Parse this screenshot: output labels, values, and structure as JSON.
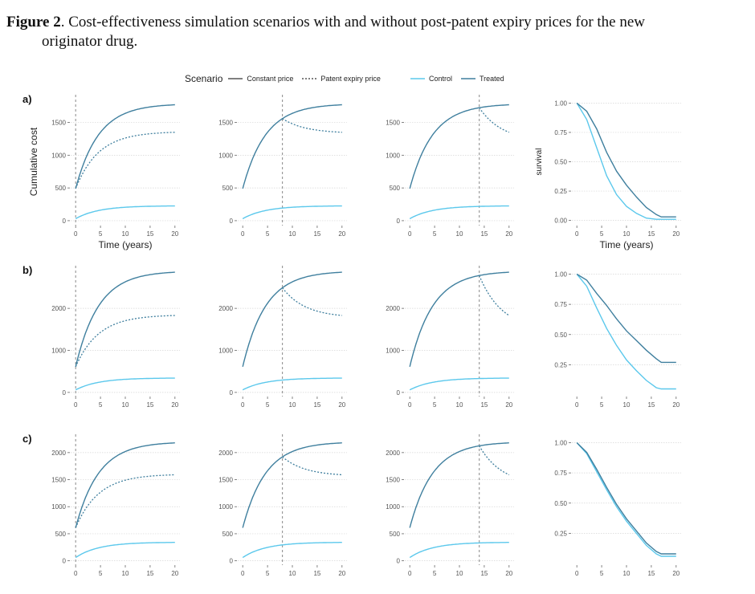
{
  "caption": {
    "label": "Figure 2",
    "text_line1": ". Cost-effectiveness simulation scenarios with and without post-patent expiry prices for the new",
    "text_line2": "originator drug."
  },
  "legend": {
    "scenario_title": "Scenario",
    "scenario_items": [
      "Constant price",
      "Patent expiry price"
    ],
    "arm_items": [
      "Control",
      "Treated"
    ]
  },
  "colors": {
    "control": "#5bc8ec",
    "treated": "#3f7f9e",
    "grid": "#d6d6d6",
    "vline": "#888888"
  },
  "chart_data": {
    "type": "line",
    "x_axis_label": "Time (years)",
    "cost_axis_label": "Cumulative cost",
    "survival_axis_label": "survival",
    "x_ticks": [
      0,
      5,
      10,
      15,
      20
    ],
    "rows": [
      {
        "label": "a)",
        "cost_ylim": [
          -50,
          1850
        ],
        "cost_yticks": [
          0,
          500,
          1000,
          1500
        ],
        "treated_constant_max": 1770,
        "treated_start": 490,
        "treated_expiry_final": 1350,
        "control_final": 225,
        "control_start": 30,
        "expiry_years": [
          0,
          8,
          14
        ],
        "survival_ylim": [
          -0.03,
          1.03
        ],
        "survival_yticks": [
          "0.00",
          "0.25",
          "0.50",
          "0.75",
          "1.00"
        ],
        "treated_survival": [
          [
            0,
            1.0
          ],
          [
            2,
            0.93
          ],
          [
            4,
            0.78
          ],
          [
            6,
            0.58
          ],
          [
            8,
            0.42
          ],
          [
            10,
            0.3
          ],
          [
            12,
            0.2
          ],
          [
            14,
            0.11
          ],
          [
            16,
            0.05
          ],
          [
            17,
            0.03
          ],
          [
            20,
            0.03
          ]
        ],
        "control_survival": [
          [
            0,
            1.0
          ],
          [
            2,
            0.86
          ],
          [
            4,
            0.62
          ],
          [
            6,
            0.38
          ],
          [
            8,
            0.22
          ],
          [
            10,
            0.12
          ],
          [
            12,
            0.06
          ],
          [
            14,
            0.02
          ],
          [
            16,
            0.01
          ],
          [
            20,
            0.01
          ]
        ],
        "show_cost_ylabel": true,
        "show_x_label": true
      },
      {
        "label": "b)",
        "cost_ylim": [
          -60,
          2900
        ],
        "cost_yticks": [
          0,
          1000,
          2000
        ],
        "treated_constant_max": 2860,
        "treated_start": 610,
        "treated_expiry_final": 1830,
        "control_final": 340,
        "control_start": 60,
        "expiry_years": [
          0,
          8,
          14
        ],
        "survival_ylim": [
          0.0,
          1.03
        ],
        "survival_yticks": [
          "0.25",
          "0.50",
          "0.75",
          "1.00"
        ],
        "treated_survival": [
          [
            0,
            1.0
          ],
          [
            2,
            0.95
          ],
          [
            4,
            0.84
          ],
          [
            6,
            0.74
          ],
          [
            8,
            0.63
          ],
          [
            10,
            0.53
          ],
          [
            12,
            0.45
          ],
          [
            14,
            0.37
          ],
          [
            16,
            0.3
          ],
          [
            17,
            0.27
          ],
          [
            20,
            0.27
          ]
        ],
        "control_survival": [
          [
            0,
            1.0
          ],
          [
            2,
            0.9
          ],
          [
            4,
            0.72
          ],
          [
            6,
            0.55
          ],
          [
            8,
            0.41
          ],
          [
            10,
            0.29
          ],
          [
            12,
            0.2
          ],
          [
            14,
            0.12
          ],
          [
            16,
            0.06
          ],
          [
            17,
            0.05
          ],
          [
            20,
            0.05
          ]
        ],
        "show_cost_ylabel": false,
        "show_x_label": false
      },
      {
        "label": "c)",
        "cost_ylim": [
          -50,
          2250
        ],
        "cost_yticks": [
          0,
          500,
          1000,
          1500,
          2000
        ],
        "treated_constant_max": 2180,
        "treated_start": 610,
        "treated_expiry_final": 1590,
        "control_final": 340,
        "control_start": 60,
        "expiry_years": [
          0,
          8,
          14
        ],
        "survival_ylim": [
          0.0,
          1.03
        ],
        "survival_yticks": [
          "0.25",
          "0.50",
          "0.75",
          "1.00"
        ],
        "treated_survival": [
          [
            0,
            1.0
          ],
          [
            2,
            0.92
          ],
          [
            4,
            0.78
          ],
          [
            6,
            0.63
          ],
          [
            8,
            0.49
          ],
          [
            10,
            0.37
          ],
          [
            12,
            0.27
          ],
          [
            14,
            0.17
          ],
          [
            16,
            0.1
          ],
          [
            17,
            0.08
          ],
          [
            20,
            0.08
          ]
        ],
        "control_survival": [
          [
            0,
            1.0
          ],
          [
            2,
            0.91
          ],
          [
            4,
            0.76
          ],
          [
            6,
            0.61
          ],
          [
            8,
            0.47
          ],
          [
            10,
            0.35
          ],
          [
            12,
            0.25
          ],
          [
            14,
            0.15
          ],
          [
            16,
            0.08
          ],
          [
            17,
            0.06
          ],
          [
            20,
            0.06
          ]
        ],
        "show_cost_ylabel": false,
        "show_x_label": false
      }
    ]
  }
}
